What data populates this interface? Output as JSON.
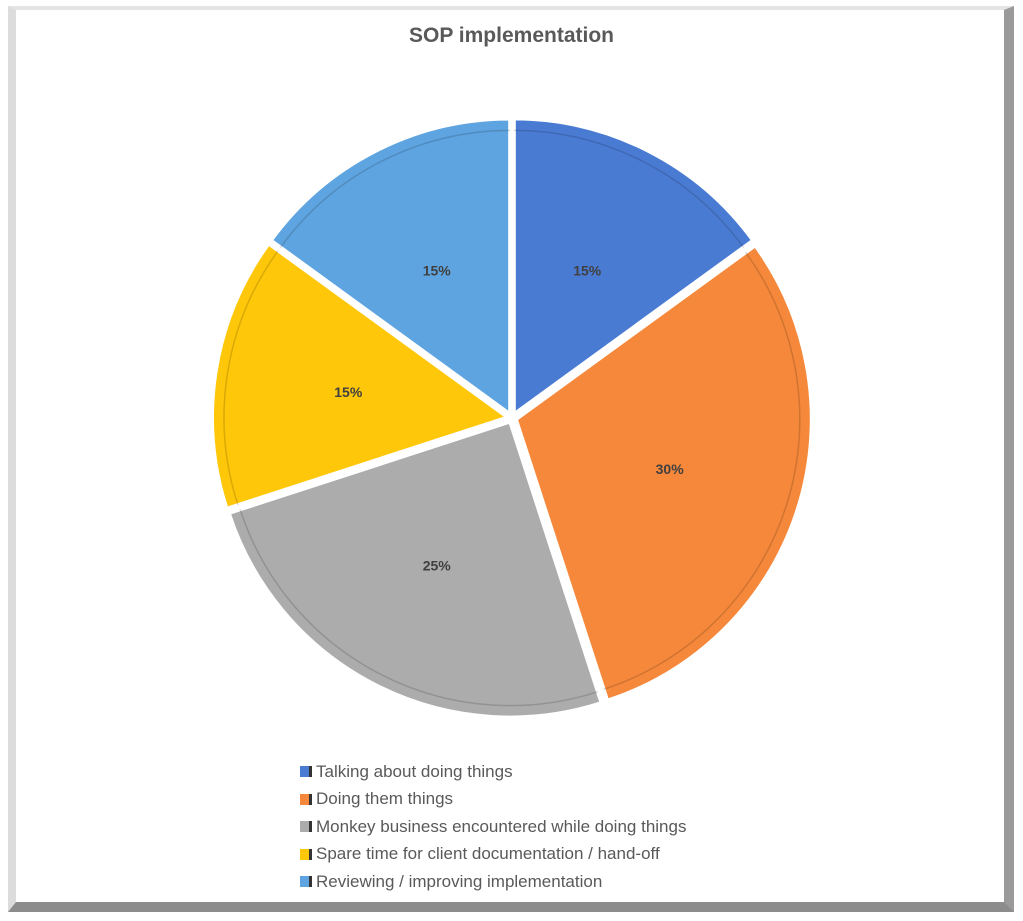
{
  "chart_data": {
    "type": "pie",
    "title": "SOP implementation",
    "categories": [
      "Talking about doing things",
      "Doing them things",
      "Monkey business encountered while doing things",
      "Spare time for client documentation / hand-off",
      "Reviewing / improving implementation"
    ],
    "values": [
      15,
      30,
      25,
      15,
      15
    ],
    "labels": [
      "15%",
      "30%",
      "25%",
      "15%",
      "15%"
    ],
    "colors": [
      "#4a7bd3",
      "#f5883a",
      "#acacac",
      "#ffc709",
      "#5ea4e0"
    ],
    "start_angle": "12 o'clock, clockwise",
    "legend_position": "bottom"
  }
}
